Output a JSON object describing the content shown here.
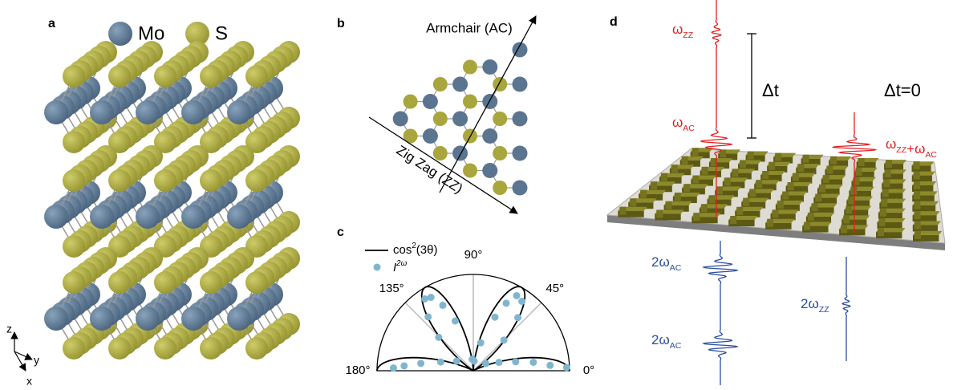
{
  "panel_labels": [
    "a",
    "b",
    "c",
    "d"
  ],
  "panel_a": {
    "legend": [
      "Mo",
      "S"
    ],
    "axes": [
      "z",
      "y",
      "x"
    ]
  },
  "panel_b": {
    "armchair": "Armchair (AC)",
    "zigzag": "Zig Zag (ZZ)"
  },
  "chart_data": {
    "type": "polar-scatter",
    "legend": {
      "curve": {
        "base": "cos",
        "sup": "2",
        "rest": "(3θ)"
      },
      "points": {
        "base": "I",
        "sup": "2ω"
      }
    },
    "color": "#7fb6cd",
    "thetaticks": [
      {
        "value": 0,
        "label": "0°"
      },
      {
        "value": 45,
        "label": "45°"
      },
      {
        "value": 90,
        "label": "90°"
      },
      {
        "value": 135,
        "label": "135°"
      },
      {
        "value": 180,
        "label": "180°"
      }
    ],
    "rlim": [
      0,
      1
    ],
    "theta": [
      2,
      4,
      8,
      12,
      18,
      30,
      45,
      50,
      55,
      60,
      64,
      68,
      75,
      85,
      95,
      110,
      115,
      120,
      124,
      130,
      136,
      150,
      165,
      172,
      176,
      178
    ],
    "r": [
      0.97,
      0.8,
      0.63,
      0.45,
      0.28,
      0.15,
      0.45,
      0.72,
      0.88,
      0.9,
      0.78,
      0.6,
      0.3,
      0.1,
      0.12,
      0.55,
      0.75,
      0.88,
      0.9,
      0.73,
      0.5,
      0.2,
      0.35,
      0.55,
      0.72,
      0.83
    ]
  },
  "panel_d": {
    "omega_zz": {
      "base": "ω",
      "sub": "ZZ"
    },
    "omega_ac": {
      "base": "ω",
      "sub": "AC"
    },
    "delta_t": "Δt",
    "delta_t_zero": "Δt=0",
    "omega_sum": [
      {
        "base": "ω",
        "sub": "ZZ"
      },
      {
        "base": "+ω",
        "sub": "AC"
      }
    ],
    "shg_ac_1": {
      "base": "2ω",
      "sub": "AC"
    },
    "shg_ac_2": {
      "base": "2ω",
      "sub": "AC"
    },
    "shg_zz": {
      "base": "2ω",
      "sub": "ZZ"
    }
  }
}
